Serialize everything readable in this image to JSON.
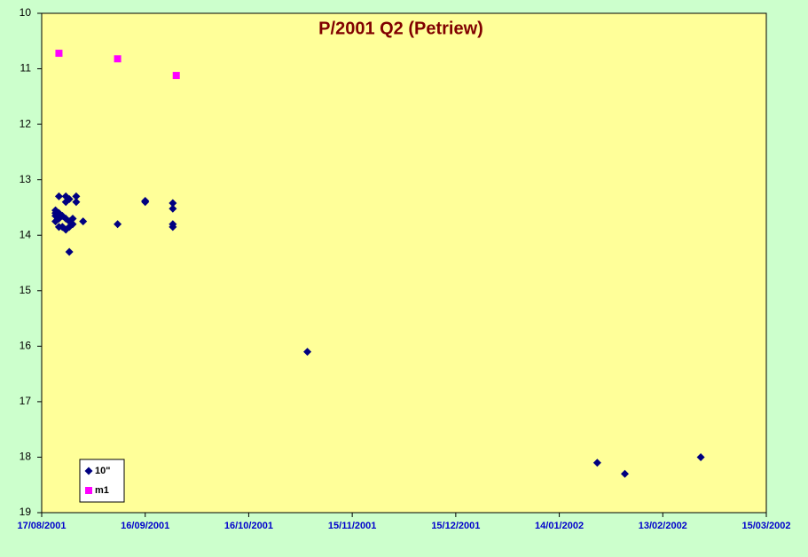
{
  "chart_data": {
    "type": "scatter",
    "title": "P/2001 Q2 (Petriew)",
    "series": [
      {
        "name": "10\"",
        "color": "#000080",
        "marker": "diamond",
        "x": [
          "2001-08-21",
          "2001-08-21",
          "2001-08-21",
          "2001-08-21",
          "2001-08-22",
          "2001-08-22",
          "2001-08-22",
          "2001-08-22",
          "2001-08-23",
          "2001-08-23",
          "2001-08-23",
          "2001-08-24",
          "2001-08-24",
          "2001-08-24",
          "2001-08-24",
          "2001-08-25",
          "2001-08-25",
          "2001-08-25",
          "2001-08-25",
          "2001-08-26",
          "2001-08-26",
          "2001-08-27",
          "2001-08-27",
          "2001-08-29",
          "2001-09-08",
          "2001-09-16",
          "2001-09-16",
          "2001-09-24",
          "2001-09-24",
          "2001-09-24",
          "2001-09-24",
          "2001-11-02",
          "2002-01-25",
          "2002-02-02",
          "2002-02-24"
        ],
        "values": [
          13.55,
          13.75,
          13.6,
          13.65,
          13.3,
          13.7,
          13.6,
          13.85,
          13.65,
          13.85,
          13.85,
          13.7,
          13.3,
          13.4,
          13.9,
          13.35,
          13.85,
          14.3,
          13.75,
          13.8,
          13.7,
          13.3,
          13.4,
          13.75,
          13.8,
          13.4,
          13.38,
          13.42,
          13.52,
          13.8,
          13.85,
          16.1,
          18.1,
          18.3,
          18.0
        ]
      },
      {
        "name": "m1",
        "color": "#ff00ff",
        "marker": "square",
        "x": [
          "2001-08-22",
          "2001-09-08",
          "2001-09-25"
        ],
        "values": [
          10.72,
          10.82,
          11.12
        ]
      }
    ],
    "xlim": [
      "2001-08-17",
      "2002-03-15"
    ],
    "xticks": [
      {
        "value": "2001-08-17",
        "label": "17/08/2001"
      },
      {
        "value": "2001-09-16",
        "label": "16/09/2001"
      },
      {
        "value": "2001-10-16",
        "label": "16/10/2001"
      },
      {
        "value": "2001-11-15",
        "label": "15/11/2001"
      },
      {
        "value": "2001-12-15",
        "label": "15/12/2001"
      },
      {
        "value": "2002-01-14",
        "label": "14/01/2002"
      },
      {
        "value": "2002-02-13",
        "label": "13/02/2002"
      },
      {
        "value": "2002-03-15",
        "label": "15/03/2002"
      }
    ],
    "ylim": [
      10,
      19
    ],
    "y_reversed": true,
    "yticks": [
      10,
      11,
      12,
      13,
      14,
      15,
      16,
      17,
      18,
      19
    ]
  }
}
